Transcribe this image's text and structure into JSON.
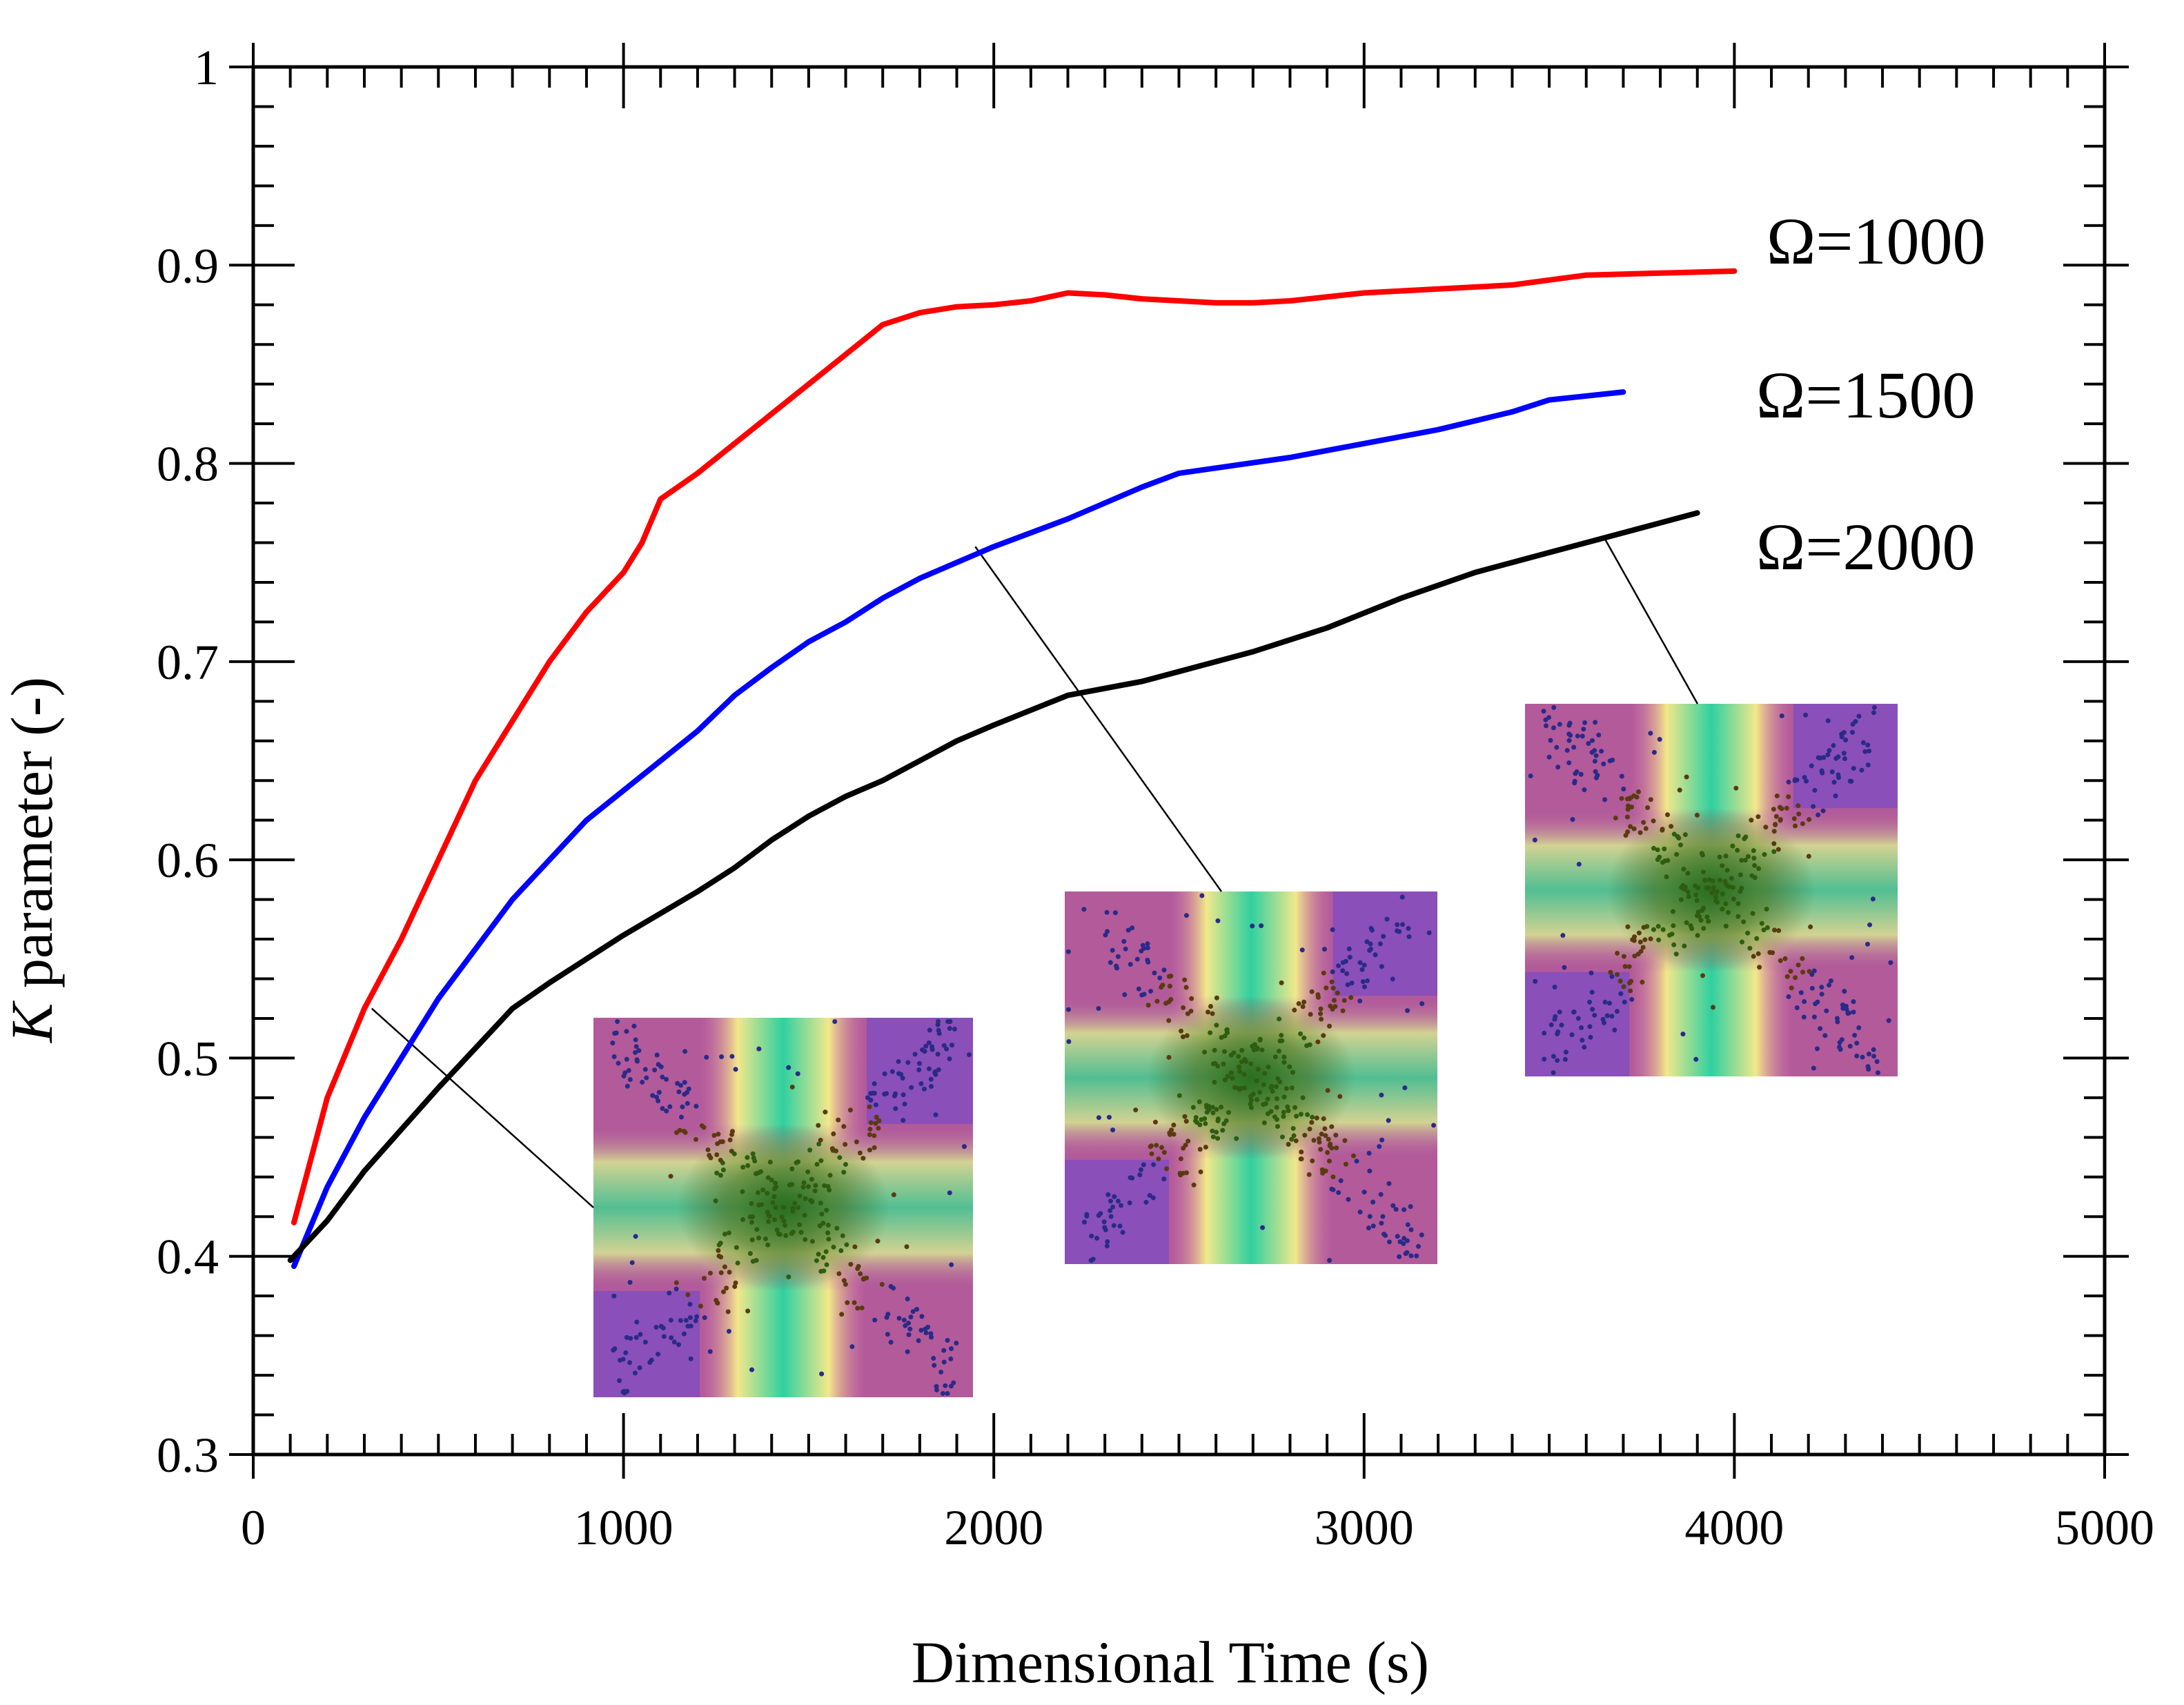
{
  "chart_data": {
    "type": "line",
    "title": "",
    "xlabel": "Dimensional Time (s)",
    "ylabel": "parameter (-)",
    "ylabel_italic_prefix": "K",
    "xlim": [
      0,
      5000
    ],
    "ylim": [
      0.3,
      1.0
    ],
    "x_major_ticks": [
      0,
      1000,
      2000,
      3000,
      4000,
      5000
    ],
    "x_tick_labels": [
      "0",
      "1000",
      "2000",
      "3000",
      "4000",
      "5000"
    ],
    "y_major_ticks": [
      0.3,
      0.4,
      0.5,
      0.6,
      0.7,
      0.8,
      0.9,
      1.0
    ],
    "y_tick_labels": [
      "0.3",
      "0.4",
      "0.5",
      "0.6",
      "0.7",
      "0.8",
      "0.9",
      "1"
    ],
    "grid": false,
    "series": [
      {
        "name": "Ω=1000",
        "color": "#ff0000",
        "x": [
          110,
          200,
          300,
          400,
          500,
          600,
          700,
          800,
          900,
          1000,
          1050,
          1100,
          1200,
          1300,
          1400,
          1500,
          1600,
          1700,
          1800,
          1900,
          2000,
          2100,
          2200,
          2300,
          2400,
          2500,
          2600,
          2700,
          2800,
          3000,
          3200,
          3400,
          3600,
          3800,
          4000
        ],
        "y": [
          0.417,
          0.48,
          0.525,
          0.56,
          0.6,
          0.64,
          0.67,
          0.7,
          0.725,
          0.745,
          0.76,
          0.782,
          0.795,
          0.81,
          0.825,
          0.84,
          0.855,
          0.87,
          0.876,
          0.879,
          0.88,
          0.882,
          0.886,
          0.885,
          0.883,
          0.882,
          0.881,
          0.881,
          0.882,
          0.886,
          0.888,
          0.89,
          0.895,
          0.896,
          0.897
        ]
      },
      {
        "name": "Ω=1500",
        "color": "#0000ff",
        "x": [
          110,
          200,
          300,
          400,
          500,
          600,
          700,
          800,
          900,
          1000,
          1100,
          1200,
          1300,
          1400,
          1500,
          1600,
          1700,
          1800,
          1900,
          2000,
          2200,
          2400,
          2500,
          2800,
          3000,
          3200,
          3400,
          3500,
          3700
        ],
        "y": [
          0.395,
          0.435,
          0.47,
          0.5,
          0.53,
          0.555,
          0.58,
          0.6,
          0.62,
          0.635,
          0.65,
          0.665,
          0.683,
          0.697,
          0.71,
          0.72,
          0.732,
          0.742,
          0.75,
          0.758,
          0.772,
          0.788,
          0.795,
          0.803,
          0.81,
          0.817,
          0.826,
          0.832,
          0.836
        ]
      },
      {
        "name": "Ω=2000",
        "color": "#000000",
        "x": [
          100,
          200,
          300,
          400,
          500,
          600,
          700,
          800,
          900,
          1000,
          1100,
          1200,
          1300,
          1400,
          1500,
          1600,
          1700,
          1800,
          1900,
          2000,
          2200,
          2400,
          2500,
          2700,
          2900,
          3100,
          3300,
          3500,
          3700,
          3900
        ],
        "y": [
          0.398,
          0.418,
          0.443,
          0.464,
          0.485,
          0.505,
          0.525,
          0.538,
          0.55,
          0.562,
          0.573,
          0.584,
          0.596,
          0.61,
          0.622,
          0.632,
          0.64,
          0.65,
          0.66,
          0.668,
          0.683,
          0.69,
          0.695,
          0.705,
          0.717,
          0.732,
          0.745,
          0.755,
          0.765,
          0.775
        ]
      }
    ],
    "series_label_texts": [
      "Ω=1000",
      "Ω=1500",
      "Ω=2000"
    ],
    "insets": [
      {
        "name": "inset-early",
        "points_to": {
          "x": 320,
          "y": 0.525
        }
      },
      {
        "name": "inset-middle",
        "points_to": {
          "x": 1950,
          "y": 0.758
        }
      },
      {
        "name": "inset-late",
        "points_to": {
          "x": 3650,
          "y": 0.762
        }
      }
    ]
  }
}
